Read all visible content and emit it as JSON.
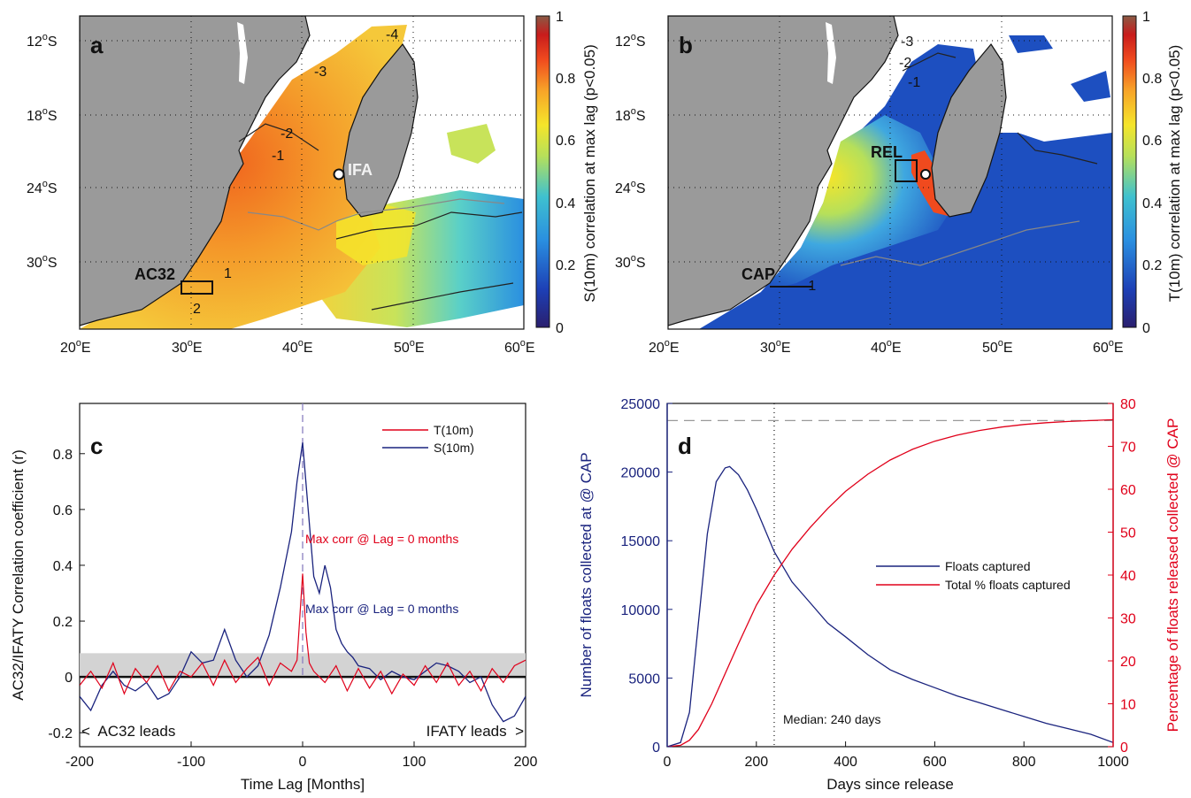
{
  "panels": {
    "a": {
      "letter": "a",
      "colorbar_label": "S(10m) correlation at max lag (p<0.05)",
      "colorbar_ticks": [
        "0",
        "0.2",
        "0.4",
        "0.6",
        "0.8",
        "1"
      ],
      "lon_ticks": [
        "20",
        "30",
        "40",
        "50",
        "60"
      ],
      "lat_ticks": [
        "12",
        "18",
        "24",
        "30"
      ],
      "box_label": "AC32",
      "point_label": "IFA",
      "contour_labels": [
        "-4",
        "-3",
        "-2",
        "-1",
        "1",
        "2"
      ]
    },
    "b": {
      "letter": "b",
      "colorbar_label": "T(10m) correlation at max lag (p<0.05)",
      "colorbar_ticks": [
        "0",
        "0.2",
        "0.4",
        "0.6",
        "0.8",
        "1"
      ],
      "lon_ticks": [
        "20",
        "30",
        "40",
        "50",
        "60"
      ],
      "lat_ticks": [
        "12",
        "18",
        "24",
        "30"
      ],
      "box_label": "REL",
      "line_label": "CAP",
      "contour_labels": [
        "-3",
        "-2",
        "-1",
        "-1"
      ]
    },
    "c": {
      "letter": "c",
      "ylabel": "AC32/IFATY Correlation coefficient (r)",
      "xlabel": "Time Lag [Months]",
      "legend": [
        "T(10m)",
        "S(10m)"
      ],
      "annotation_t": "Max corr @ Lag = 0 months",
      "annotation_s": "Max corr @ Lag = 0 months",
      "left_note": "<  AC32 leads",
      "right_note": "IFATY leads  >"
    },
    "d": {
      "letter": "d",
      "ylabel_left": "Number of floats collected at  @ CAP",
      "ylabel_right": "Percentage of floats released collected @ CAP",
      "xlabel": "Days since release",
      "legend": [
        "Floats captured",
        "Total % floats captured"
      ],
      "median_note": "Median: 240 days"
    }
  },
  "colors": {
    "land": "#9a9a9a",
    "t_series": "#e0001a",
    "s_series": "#1a237e",
    "significance_band": "#d3d3d3",
    "axis_left_d": "#1a237e",
    "axis_right_d": "#e0001a"
  },
  "chart_data": [
    {
      "panel": "c",
      "type": "line",
      "x_range": [
        -200,
        200
      ],
      "ylim": [
        -0.25,
        0.98
      ],
      "x_ticks": [
        -200,
        -100,
        0,
        100,
        200
      ],
      "y_ticks": [
        -0.2,
        0,
        0.2,
        0.4,
        0.6,
        0.8
      ],
      "significance_band": 0.085,
      "series": [
        {
          "name": "S(10m)",
          "x": [
            -200,
            -190,
            -180,
            -170,
            -160,
            -150,
            -140,
            -130,
            -120,
            -110,
            -100,
            -90,
            -80,
            -70,
            -60,
            -50,
            -40,
            -30,
            -20,
            -10,
            -5,
            0,
            5,
            10,
            15,
            20,
            25,
            30,
            35,
            40,
            45,
            50,
            60,
            70,
            80,
            90,
            100,
            110,
            120,
            130,
            140,
            150,
            160,
            170,
            180,
            190,
            200
          ],
          "y": [
            -0.07,
            -0.12,
            -0.03,
            0.02,
            -0.03,
            -0.05,
            -0.02,
            -0.08,
            -0.06,
            0.0,
            0.09,
            0.05,
            0.06,
            0.17,
            0.06,
            0.0,
            0.04,
            0.15,
            0.32,
            0.52,
            0.7,
            0.84,
            0.6,
            0.36,
            0.3,
            0.4,
            0.32,
            0.17,
            0.12,
            0.09,
            0.07,
            0.04,
            0.03,
            -0.01,
            0.02,
            0.0,
            -0.01,
            0.02,
            0.05,
            0.04,
            0.02,
            -0.02,
            0.0,
            -0.1,
            -0.16,
            -0.14,
            -0.07
          ]
        },
        {
          "name": "T(10m)",
          "x": [
            -200,
            -190,
            -180,
            -170,
            -160,
            -150,
            -140,
            -130,
            -120,
            -110,
            -100,
            -90,
            -80,
            -70,
            -60,
            -50,
            -40,
            -30,
            -20,
            -10,
            -5,
            0,
            3,
            6,
            10,
            20,
            30,
            40,
            50,
            60,
            70,
            80,
            90,
            100,
            110,
            120,
            130,
            140,
            150,
            160,
            170,
            180,
            190,
            200
          ],
          "y": [
            -0.03,
            0.02,
            -0.04,
            0.05,
            -0.06,
            0.03,
            -0.02,
            0.04,
            -0.05,
            0.02,
            0.0,
            0.05,
            -0.03,
            0.06,
            -0.02,
            0.03,
            0.07,
            -0.03,
            0.05,
            0.02,
            0.06,
            0.37,
            0.16,
            0.05,
            0.02,
            -0.02,
            0.04,
            -0.05,
            0.03,
            -0.04,
            0.02,
            -0.06,
            0.01,
            -0.03,
            0.04,
            -0.02,
            0.05,
            -0.03,
            0.02,
            -0.05,
            0.03,
            -0.02,
            0.04,
            0.06
          ]
        }
      ]
    },
    {
      "panel": "d",
      "type": "line",
      "x_range": [
        0,
        1000
      ],
      "x_ticks": [
        0,
        200,
        400,
        600,
        800,
        1000
      ],
      "y_left_range": [
        0,
        25000
      ],
      "y_left_ticks": [
        0,
        5000,
        10000,
        15000,
        20000,
        25000
      ],
      "y_right_range": [
        0,
        80
      ],
      "y_right_ticks": [
        0,
        10,
        20,
        30,
        40,
        50,
        60,
        70,
        80
      ],
      "median_days": 240,
      "asymptote_percent": 76,
      "series": [
        {
          "name": "Floats captured",
          "axis": "left",
          "x": [
            0,
            30,
            50,
            70,
            90,
            110,
            130,
            140,
            160,
            180,
            200,
            240,
            280,
            320,
            360,
            400,
            450,
            500,
            550,
            600,
            650,
            700,
            750,
            800,
            850,
            900,
            950,
            1000
          ],
          "y": [
            0,
            300,
            2500,
            9000,
            15500,
            19300,
            20300,
            20400,
            19800,
            18700,
            17300,
            14200,
            12000,
            10500,
            9000,
            8000,
            6700,
            5600,
            4900,
            4300,
            3700,
            3200,
            2700,
            2200,
            1700,
            1300,
            900,
            300
          ]
        },
        {
          "name": "Total % floats captured",
          "axis": "right",
          "x": [
            0,
            30,
            50,
            70,
            100,
            130,
            160,
            200,
            240,
            280,
            320,
            360,
            400,
            450,
            500,
            550,
            600,
            650,
            700,
            750,
            800,
            850,
            900,
            950,
            1000
          ],
          "y": [
            0,
            0.3,
            1.5,
            4,
            10,
            17,
            24,
            33,
            40,
            46,
            51,
            55.5,
            59.5,
            63.5,
            66.8,
            69.3,
            71.2,
            72.6,
            73.7,
            74.5,
            75.1,
            75.5,
            75.8,
            76.0,
            76.2
          ]
        }
      ]
    }
  ]
}
